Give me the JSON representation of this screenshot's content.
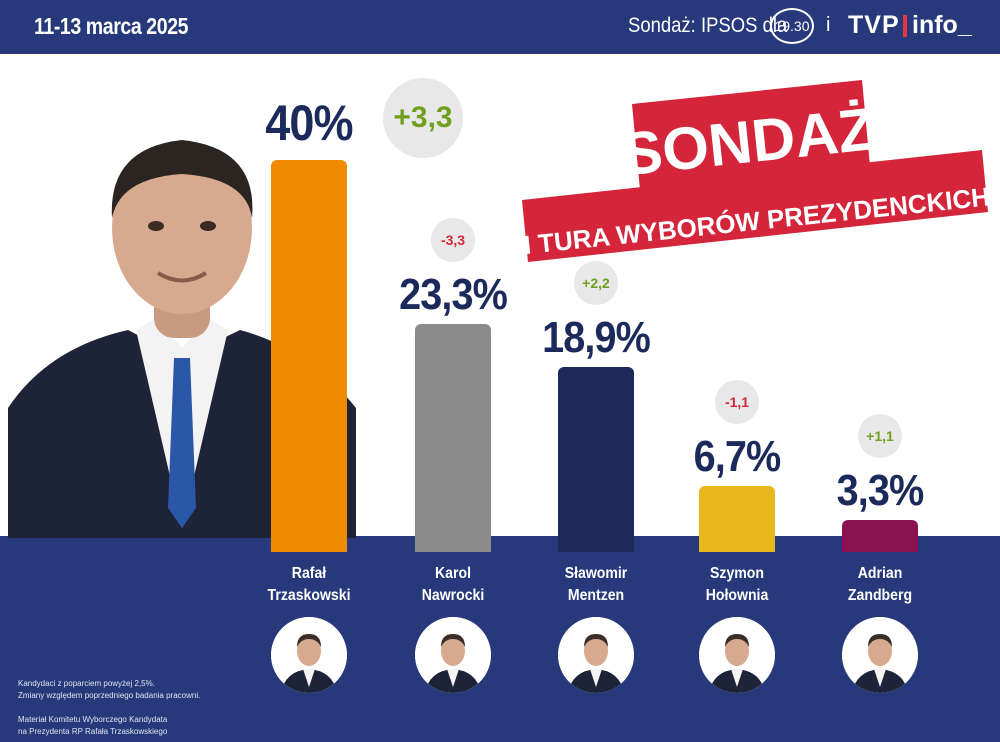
{
  "header": {
    "date": "11-13 marca 2025",
    "source": "Sondaż: IPSOS dla",
    "badge": "19.30",
    "separator": "i",
    "brand_tvp": "TVP",
    "brand_info": "info_"
  },
  "title": {
    "line1": "SONDAŻ",
    "line2": "I TURA WYBORÓW PREZYDENCKICH",
    "ribbon_color": "#d4253a"
  },
  "chart_data": {
    "type": "bar",
    "categories": [
      "Rafał Trzaskowski",
      "Karol Nawrocki",
      "Sławomir Mentzen",
      "Szymon Hołownia",
      "Adrian Zandberg"
    ],
    "values": [
      40,
      23.3,
      18.9,
      6.7,
      3.3
    ],
    "labels": [
      "40%",
      "23,3%",
      "18,9%",
      "6,7%",
      "3,3%"
    ],
    "changes": [
      "+3,3",
      "-3,3",
      "+2,2",
      "-1,1",
      "+1,1"
    ],
    "names_line1": [
      "Rafał",
      "Karol",
      "Sławomir",
      "Szymon",
      "Adrian"
    ],
    "names_line2": [
      "Trzaskowski",
      "Nawrocki",
      "Mentzen",
      "Hołownia",
      "Zandberg"
    ],
    "colors": [
      "#f08a00",
      "#8b8b8b",
      "#1b2a5b",
      "#e6b81e",
      "#8a1250"
    ],
    "ylim": [
      0,
      40
    ]
  },
  "footnotes": {
    "line1": "Kandydaci z poparciem powyżej 2,5%.",
    "line2": "Zmiany względem poprzedniego badania pracowni.",
    "line3": "Materiał Komitetu Wyborczego Kandydata",
    "line4": "na Prezydenta RP Rafała Trzaskowskiego"
  },
  "colors": {
    "navy": "#27397a",
    "dark_text": "#1b2a5b",
    "positive": "#6fa01e",
    "negative": "#d4253a"
  }
}
